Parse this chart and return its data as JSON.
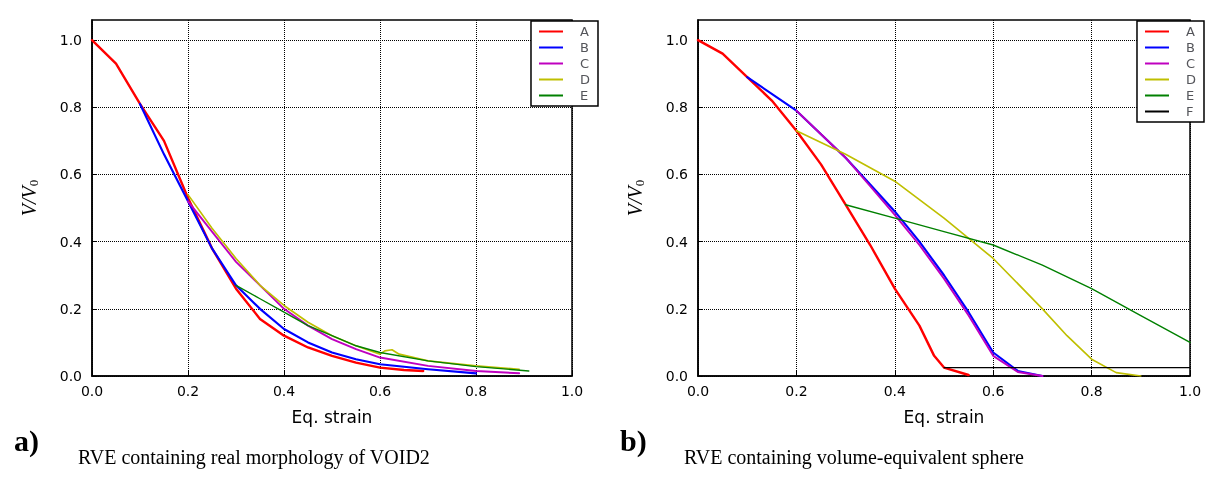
{
  "chart_data": [
    {
      "type": "line",
      "xlabel": "Eq. strain",
      "ylabel": "V/V$_{0}$",
      "annotations": [
        "a)",
        "RVE containing real morphology of VOID2"
      ],
      "xlim": [
        0,
        1.0
      ],
      "ylim": [
        0,
        1.06
      ],
      "xticks": [
        {
          "value": 0,
          "label": "0.0"
        },
        {
          "value": 0.2,
          "label": "0.2"
        },
        {
          "value": 0.4,
          "label": "0.4"
        },
        {
          "value": 0.6,
          "label": "0.6"
        },
        {
          "value": 0.8,
          "label": "0.8"
        },
        {
          "value": 1.0,
          "label": "1.0"
        }
      ],
      "yticks": [
        {
          "value": 0,
          "label": "0.0"
        },
        {
          "value": 0.2,
          "label": "0.2"
        },
        {
          "value": 0.4,
          "label": "0.4"
        },
        {
          "value": 0.6,
          "label": "0.6"
        },
        {
          "value": 0.8,
          "label": "0.8"
        },
        {
          "value": 1.0,
          "label": "1.0"
        }
      ],
      "grid": true,
      "legend": "top right",
      "marker": "none",
      "line_style": "solid",
      "series": [
        {
          "name": "A",
          "color": "#ff0000",
          "x": [
            0,
            0.05,
            0.1,
            0.15,
            0.2,
            0.25,
            0.3,
            0.35,
            0.4,
            0.45,
            0.5,
            0.55,
            0.6,
            0.65,
            0.69
          ],
          "values": [
            1.0,
            0.93,
            0.81,
            0.7,
            0.53,
            0.38,
            0.26,
            0.17,
            0.12,
            0.085,
            0.06,
            0.04,
            0.025,
            0.018,
            0.015
          ]
        },
        {
          "name": "B",
          "color": "#0000ff",
          "x": [
            0.1,
            0.15,
            0.2,
            0.25,
            0.3,
            0.35,
            0.4,
            0.45,
            0.5,
            0.55,
            0.6,
            0.7,
            0.8
          ],
          "values": [
            0.81,
            0.66,
            0.52,
            0.38,
            0.27,
            0.2,
            0.14,
            0.1,
            0.07,
            0.05,
            0.035,
            0.02,
            0.008
          ]
        },
        {
          "name": "C",
          "color": "#bf00bf",
          "x": [
            0.2,
            0.25,
            0.3,
            0.35,
            0.4,
            0.45,
            0.5,
            0.55,
            0.6,
            0.7,
            0.8,
            0.89
          ],
          "values": [
            0.52,
            0.43,
            0.34,
            0.27,
            0.2,
            0.15,
            0.11,
            0.08,
            0.055,
            0.03,
            0.015,
            0.008
          ]
        },
        {
          "name": "D",
          "color": "#bfbf00",
          "x": [
            0.2,
            0.25,
            0.3,
            0.35,
            0.4,
            0.45,
            0.5,
            0.55,
            0.6,
            0.61,
            0.625,
            0.64,
            0.7,
            0.8,
            0.89
          ],
          "values": [
            0.54,
            0.44,
            0.35,
            0.27,
            0.21,
            0.16,
            0.12,
            0.09,
            0.065,
            0.075,
            0.078,
            0.065,
            0.045,
            0.03,
            0.02
          ]
        },
        {
          "name": "E",
          "color": "#008000",
          "x": [
            0.3,
            0.35,
            0.4,
            0.45,
            0.5,
            0.55,
            0.6,
            0.7,
            0.8,
            0.91
          ],
          "values": [
            0.27,
            0.23,
            0.19,
            0.15,
            0.12,
            0.09,
            0.07,
            0.045,
            0.028,
            0.015
          ]
        }
      ]
    },
    {
      "type": "line",
      "xlabel": "Eq. strain",
      "ylabel": "V/V$_{0}$",
      "annotations": [
        "b)",
        "RVE containing volume-equivalent sphere"
      ],
      "xlim": [
        0,
        1.0
      ],
      "ylim": [
        0,
        1.06
      ],
      "xticks": [
        {
          "value": 0,
          "label": "0.0"
        },
        {
          "value": 0.2,
          "label": "0.2"
        },
        {
          "value": 0.4,
          "label": "0.4"
        },
        {
          "value": 0.6,
          "label": "0.6"
        },
        {
          "value": 0.8,
          "label": "0.8"
        },
        {
          "value": 1.0,
          "label": "1.0"
        }
      ],
      "yticks": [
        {
          "value": 0,
          "label": "0.0"
        },
        {
          "value": 0.2,
          "label": "0.2"
        },
        {
          "value": 0.4,
          "label": "0.4"
        },
        {
          "value": 0.6,
          "label": "0.6"
        },
        {
          "value": 0.8,
          "label": "0.8"
        },
        {
          "value": 1.0,
          "label": "1.0"
        }
      ],
      "grid": true,
      "legend": "top right",
      "marker": "none",
      "line_style": "solid",
      "series": [
        {
          "name": "A",
          "color": "#ff0000",
          "x": [
            0,
            0.05,
            0.1,
            0.15,
            0.2,
            0.25,
            0.3,
            0.35,
            0.4,
            0.45,
            0.48,
            0.5,
            0.55
          ],
          "values": [
            1.0,
            0.96,
            0.89,
            0.82,
            0.73,
            0.63,
            0.51,
            0.39,
            0.26,
            0.15,
            0.06,
            0.025,
            0.003
          ]
        },
        {
          "name": "B",
          "color": "#0000ff",
          "x": [
            0.1,
            0.2,
            0.25,
            0.3,
            0.35,
            0.4,
            0.45,
            0.5,
            0.55,
            0.6,
            0.65,
            0.7
          ],
          "values": [
            0.89,
            0.79,
            0.72,
            0.65,
            0.57,
            0.49,
            0.4,
            0.3,
            0.19,
            0.07,
            0.015,
            0.0
          ]
        },
        {
          "name": "C",
          "color": "#bf00bf",
          "x": [
            0.2,
            0.25,
            0.3,
            0.35,
            0.4,
            0.45,
            0.5,
            0.55,
            0.6,
            0.65,
            0.7
          ],
          "values": [
            0.79,
            0.72,
            0.65,
            0.565,
            0.48,
            0.39,
            0.29,
            0.18,
            0.06,
            0.012,
            0.0
          ]
        },
        {
          "name": "D",
          "color": "#bfbf00",
          "x": [
            0.2,
            0.3,
            0.4,
            0.5,
            0.6,
            0.7,
            0.75,
            0.8,
            0.85,
            0.9
          ],
          "values": [
            0.73,
            0.66,
            0.58,
            0.47,
            0.35,
            0.2,
            0.12,
            0.05,
            0.01,
            0.0
          ]
        },
        {
          "name": "E",
          "color": "#008000",
          "x": [
            0.3,
            0.4,
            0.5,
            0.6,
            0.7,
            0.8,
            0.9,
            1.0
          ],
          "values": [
            0.51,
            0.47,
            0.43,
            0.39,
            0.33,
            0.26,
            0.18,
            0.1
          ]
        },
        {
          "name": "F",
          "color": "#000000",
          "x": [
            0.5,
            1.0
          ],
          "values": [
            0.025,
            0.025
          ]
        }
      ]
    }
  ]
}
